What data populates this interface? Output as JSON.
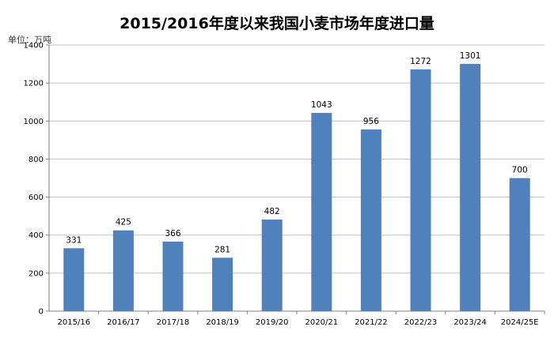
{
  "chart_data": {
    "type": "bar",
    "title": "2015/2016年度以来我国小麦市场年度进口量",
    "unit_label": "单位：万吨",
    "categories": [
      "2015/16",
      "2016/17",
      "2017/18",
      "2018/19",
      "2019/20",
      "2020/21",
      "2021/22",
      "2022/23",
      "2023/24",
      "2024/25E"
    ],
    "values": [
      331,
      425,
      366,
      281,
      482,
      1043,
      956,
      1272,
      1301,
      700
    ],
    "data_labels": [
      "331",
      "425",
      "366",
      "281",
      "482",
      "1043",
      "956",
      "1272",
      "1301",
      "700"
    ],
    "yticks": [
      "0",
      "200",
      "400",
      "600",
      "800",
      "1000",
      "1200",
      "1400"
    ],
    "ylim": [
      0,
      1400
    ],
    "grid": true,
    "bar_color": "#4f81bd"
  }
}
